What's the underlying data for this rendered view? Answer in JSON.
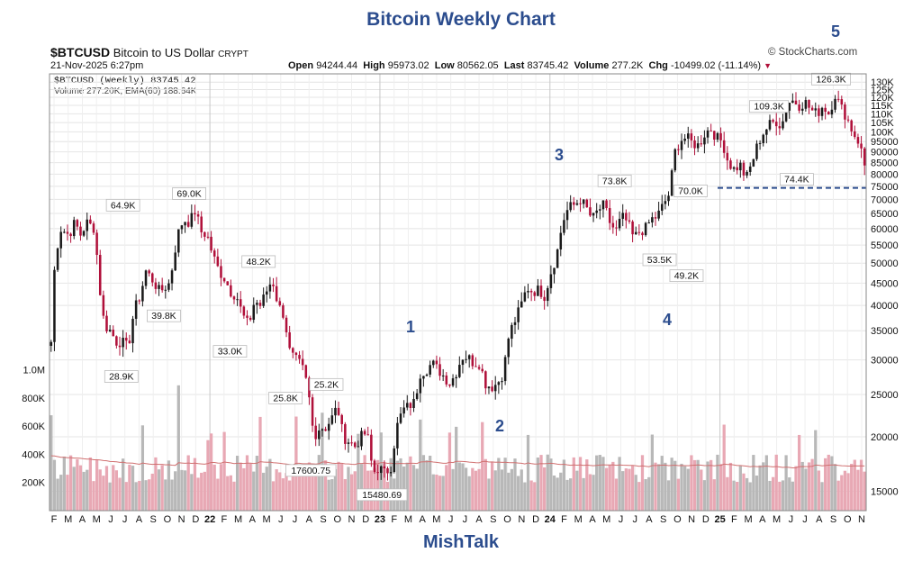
{
  "title": "Bitcoin Weekly Chart",
  "footer": "MishTalk",
  "header": {
    "symbol": "$BTCUSD",
    "name": "Bitcoin to US Dollar",
    "exchange": "CRYPT",
    "brand": "© StockCharts.com",
    "datetime": "21-Nov-2025 6:27pm",
    "open_label": "Open",
    "open": "94244.44",
    "high_label": "High",
    "high": "95973.02",
    "low_label": "Low",
    "low": "80562.05",
    "last_label": "Last",
    "last": "83745.42",
    "volume_label": "Volume",
    "volume": "277.2K",
    "chg_label": "Chg",
    "chg": "-10499.02 (-11.14%)",
    "chg_arrow": "▼",
    "legend_price": "$BTCUSD (Weekly) 83745.42",
    "legend_volume": "Volume 277.20K, EMA(60) 188.64K"
  },
  "waves": [
    "1",
    "2",
    "3",
    "4",
    "5"
  ],
  "colors": {
    "up": "#1a1a1a",
    "down": "#b0103a",
    "title": "#2c4d8e",
    "support": "#2c4d8e",
    "volume_up": "#b8b8b8",
    "volume_down": "#e8a8b4",
    "ema": "#d07070"
  },
  "chart_data": {
    "type": "candlestick",
    "y_scale": "log",
    "ylim": [
      14000,
      132000
    ],
    "y_ticks": [
      15000,
      20000,
      25000,
      30000,
      35000,
      40000,
      45000,
      50000,
      55000,
      60000,
      65000,
      70000,
      75000,
      80000,
      85000,
      90000,
      95000,
      100000,
      105000,
      110000,
      115000,
      120000,
      125000,
      130000
    ],
    "y_tick_labels": [
      "15000",
      "20000",
      "25000",
      "30000",
      "35000",
      "40000",
      "45000",
      "50000",
      "55000",
      "60000",
      "65000",
      "70000",
      "75000",
      "80000",
      "85000",
      "90000",
      "95000",
      "100K",
      "105K",
      "110K",
      "115K",
      "120K",
      "125K",
      "130K"
    ],
    "x_labels": [
      "F",
      "M",
      "A",
      "M",
      "J",
      "J",
      "A",
      "S",
      "O",
      "N",
      "D",
      "22",
      "F",
      "M",
      "A",
      "M",
      "J",
      "J",
      "A",
      "S",
      "O",
      "N",
      "D",
      "23",
      "F",
      "M",
      "A",
      "M",
      "J",
      "J",
      "A",
      "S",
      "O",
      "N",
      "D",
      "24",
      "F",
      "M",
      "A",
      "M",
      "J",
      "J",
      "A",
      "S",
      "O",
      "N",
      "D",
      "25",
      "F",
      "M",
      "A",
      "M",
      "J",
      "J",
      "A",
      "S",
      "O",
      "N"
    ],
    "year_labels": [
      "22",
      "23",
      "24",
      "25"
    ],
    "price_path": [
      [
        0,
        33000
      ],
      [
        2,
        52000
      ],
      [
        5,
        60000
      ],
      [
        9,
        58000
      ],
      [
        12,
        62000
      ],
      [
        15,
        58000
      ],
      [
        18,
        62000
      ],
      [
        22,
        60000
      ],
      [
        25,
        42000
      ],
      [
        27,
        36000
      ],
      [
        30,
        35000
      ],
      [
        33,
        33000
      ],
      [
        36,
        33000
      ],
      [
        39,
        32000
      ],
      [
        42,
        39000
      ],
      [
        45,
        42000
      ],
      [
        48,
        48000
      ],
      [
        51,
        46000
      ],
      [
        55,
        43000
      ],
      [
        60,
        45000
      ],
      [
        64,
        58000
      ],
      [
        67,
        63000
      ],
      [
        70,
        62000
      ],
      [
        73,
        66000
      ],
      [
        76,
        59000
      ],
      [
        79,
        58000
      ],
      [
        82,
        52000
      ],
      [
        85,
        48000
      ],
      [
        88,
        46000
      ],
      [
        91,
        43000
      ],
      [
        94,
        42000
      ],
      [
        97,
        38000
      ],
      [
        100,
        36000
      ],
      [
        103,
        41000
      ],
      [
        106,
        40000
      ],
      [
        109,
        43000
      ],
      [
        112,
        46000
      ],
      [
        115,
        40000
      ],
      [
        118,
        38000
      ],
      [
        121,
        31000
      ],
      [
        124,
        30000
      ],
      [
        127,
        29000
      ],
      [
        130,
        26000
      ],
      [
        133,
        20000
      ],
      [
        136,
        21000
      ],
      [
        139,
        21000
      ],
      [
        142,
        22000
      ],
      [
        145,
        23500
      ],
      [
        148,
        20000
      ],
      [
        151,
        19500
      ],
      [
        154,
        19000
      ],
      [
        157,
        20000
      ],
      [
        160,
        20500
      ],
      [
        163,
        16500
      ],
      [
        166,
        17000
      ],
      [
        169,
        16500
      ],
      [
        172,
        17000
      ],
      [
        175,
        21000
      ],
      [
        178,
        23000
      ],
      [
        181,
        23500
      ],
      [
        184,
        24000
      ],
      [
        187,
        28000
      ],
      [
        190,
        28500
      ],
      [
        193,
        29500
      ],
      [
        196,
        28500
      ],
      [
        199,
        27500
      ],
      [
        202,
        26500
      ],
      [
        205,
        28000
      ],
      [
        208,
        30500
      ],
      [
        211,
        30500
      ],
      [
        214,
        29500
      ],
      [
        217,
        29500
      ],
      [
        220,
        26500
      ],
      [
        223,
        26000
      ],
      [
        226,
        26500
      ],
      [
        229,
        28000
      ],
      [
        232,
        34500
      ],
      [
        235,
        37000
      ],
      [
        238,
        40000
      ],
      [
        241,
        44000
      ],
      [
        244,
        43000
      ],
      [
        247,
        43500
      ],
      [
        250,
        42000
      ],
      [
        253,
        47500
      ],
      [
        256,
        52000
      ],
      [
        259,
        62000
      ],
      [
        262,
        67000
      ],
      [
        265,
        68000
      ],
      [
        268,
        70000
      ],
      [
        271,
        67000
      ],
      [
        274,
        63000
      ],
      [
        277,
        66000
      ],
      [
        280,
        68000
      ],
      [
        283,
        62000
      ],
      [
        286,
        59000
      ],
      [
        289,
        64000
      ],
      [
        292,
        62000
      ],
      [
        295,
        57000
      ],
      [
        298,
        59000
      ],
      [
        301,
        60000
      ],
      [
        304,
        63000
      ],
      [
        307,
        64000
      ],
      [
        310,
        68000
      ],
      [
        313,
        72000
      ],
      [
        316,
        90000
      ],
      [
        319,
        96000
      ],
      [
        322,
        97000
      ],
      [
        325,
        94000
      ],
      [
        328,
        93000
      ],
      [
        331,
        99000
      ],
      [
        334,
        102000
      ],
      [
        337,
        97000
      ],
      [
        340,
        95000
      ],
      [
        343,
        85000
      ],
      [
        346,
        82000
      ],
      [
        349,
        84000
      ],
      [
        352,
        78000
      ],
      [
        355,
        85000
      ],
      [
        358,
        94000
      ],
      [
        361,
        100000
      ],
      [
        364,
        104000
      ],
      [
        367,
        106000
      ],
      [
        370,
        103000
      ],
      [
        373,
        117000
      ],
      [
        376,
        118000
      ],
      [
        379,
        115000
      ],
      [
        382,
        117000
      ],
      [
        385,
        112000
      ],
      [
        388,
        110000
      ],
      [
        391,
        115000
      ],
      [
        394,
        110000
      ],
      [
        397,
        122000
      ],
      [
        400,
        114000
      ],
      [
        403,
        108000
      ],
      [
        406,
        100000
      ],
      [
        409,
        95000
      ],
      [
        412,
        85000
      ]
    ],
    "candle_count": 250,
    "last_close": 83745.42,
    "annotations": [
      {
        "text": "64.9K",
        "value": 64900,
        "x": 0.09
      },
      {
        "text": "69.0K",
        "value": 69000,
        "x": 0.171
      },
      {
        "text": "28.9K",
        "value": 28900,
        "x": 0.088
      },
      {
        "text": "39.8K",
        "value": 39800,
        "x": 0.14
      },
      {
        "text": "48.2K",
        "value": 48200,
        "x": 0.256
      },
      {
        "text": "33.0K",
        "value": 33000,
        "x": 0.221
      },
      {
        "text": "25.8K",
        "value": 25800,
        "x": 0.289
      },
      {
        "text": "25.2K",
        "value": 25200,
        "x": 0.339
      },
      {
        "text": "17600.75",
        "value": 17600.75,
        "x": 0.32
      },
      {
        "text": "15480.69",
        "value": 15480.69,
        "x": 0.407
      },
      {
        "text": "73.8K",
        "value": 73800,
        "x": 0.692
      },
      {
        "text": "70.0K",
        "value": 70000,
        "x": 0.785
      },
      {
        "text": "53.5K",
        "value": 53500,
        "x": 0.747
      },
      {
        "text": "49.2K",
        "value": 49200,
        "x": 0.78
      },
      {
        "text": "109.3K",
        "value": 109300,
        "x": 0.881
      },
      {
        "text": "74.4K",
        "value": 74400,
        "x": 0.915
      },
      {
        "text": "126.3K",
        "value": 126300,
        "x": 0.957
      }
    ],
    "support_line": {
      "value": 74400
    },
    "volume": {
      "ylim": [
        0,
        1100000
      ],
      "y_ticks": [
        200000,
        400000,
        600000,
        800000,
        1000000
      ],
      "y_tick_labels": [
        "200K",
        "400K",
        "600K",
        "800K",
        "1.0M"
      ],
      "ema_period": 60
    }
  }
}
